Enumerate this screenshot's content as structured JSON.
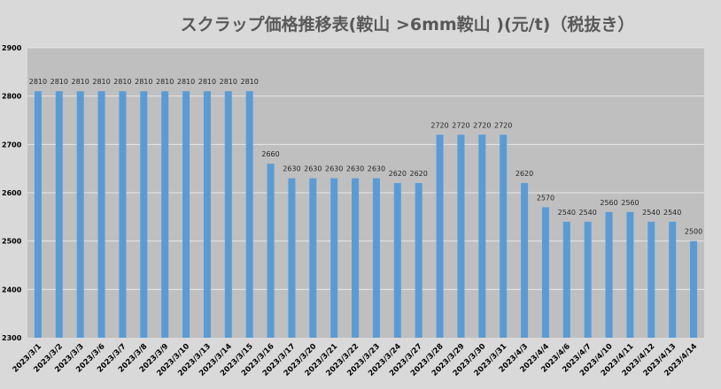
{
  "chart_data": {
    "type": "bar",
    "title": "スクラップ価格推移表(鞍山 >6mm鞍山 )(元/t)（税抜き）",
    "xlabel": "",
    "ylabel": "",
    "ylim": [
      2300,
      2900
    ],
    "yticks": [
      2300,
      2400,
      2500,
      2600,
      2700,
      2800,
      2900
    ],
    "grid": true,
    "legend": "none",
    "bar_color": "#5b9bd5",
    "plot_bg": "#bfbfbf",
    "categories": [
      "2023/3/1",
      "2023/3/2",
      "2023/3/3",
      "2023/3/6",
      "2023/3/7",
      "2023/3/8",
      "2023/3/9",
      "2023/3/10",
      "2023/3/13",
      "2023/3/14",
      "2023/3/15",
      "2023/3/16",
      "2023/3/17",
      "2023/3/20",
      "2023/3/21",
      "2023/3/22",
      "2023/3/23",
      "2023/3/24",
      "2023/3/27",
      "2023/3/28",
      "2023/3/29",
      "2023/3/30",
      "2023/3/31",
      "2023/4/3",
      "2023/4/4",
      "2023/4/6",
      "2023/4/7",
      "2023/4/10",
      "2023/4/11",
      "2023/4/12",
      "2023/4/13",
      "2023/4/14"
    ],
    "values": [
      2810,
      2810,
      2810,
      2810,
      2810,
      2810,
      2810,
      2810,
      2810,
      2810,
      2810,
      2660,
      2630,
      2630,
      2630,
      2630,
      2630,
      2620,
      2620,
      2720,
      2720,
      2720,
      2720,
      2620,
      2570,
      2540,
      2540,
      2560,
      2560,
      2540,
      2540,
      2500
    ]
  }
}
